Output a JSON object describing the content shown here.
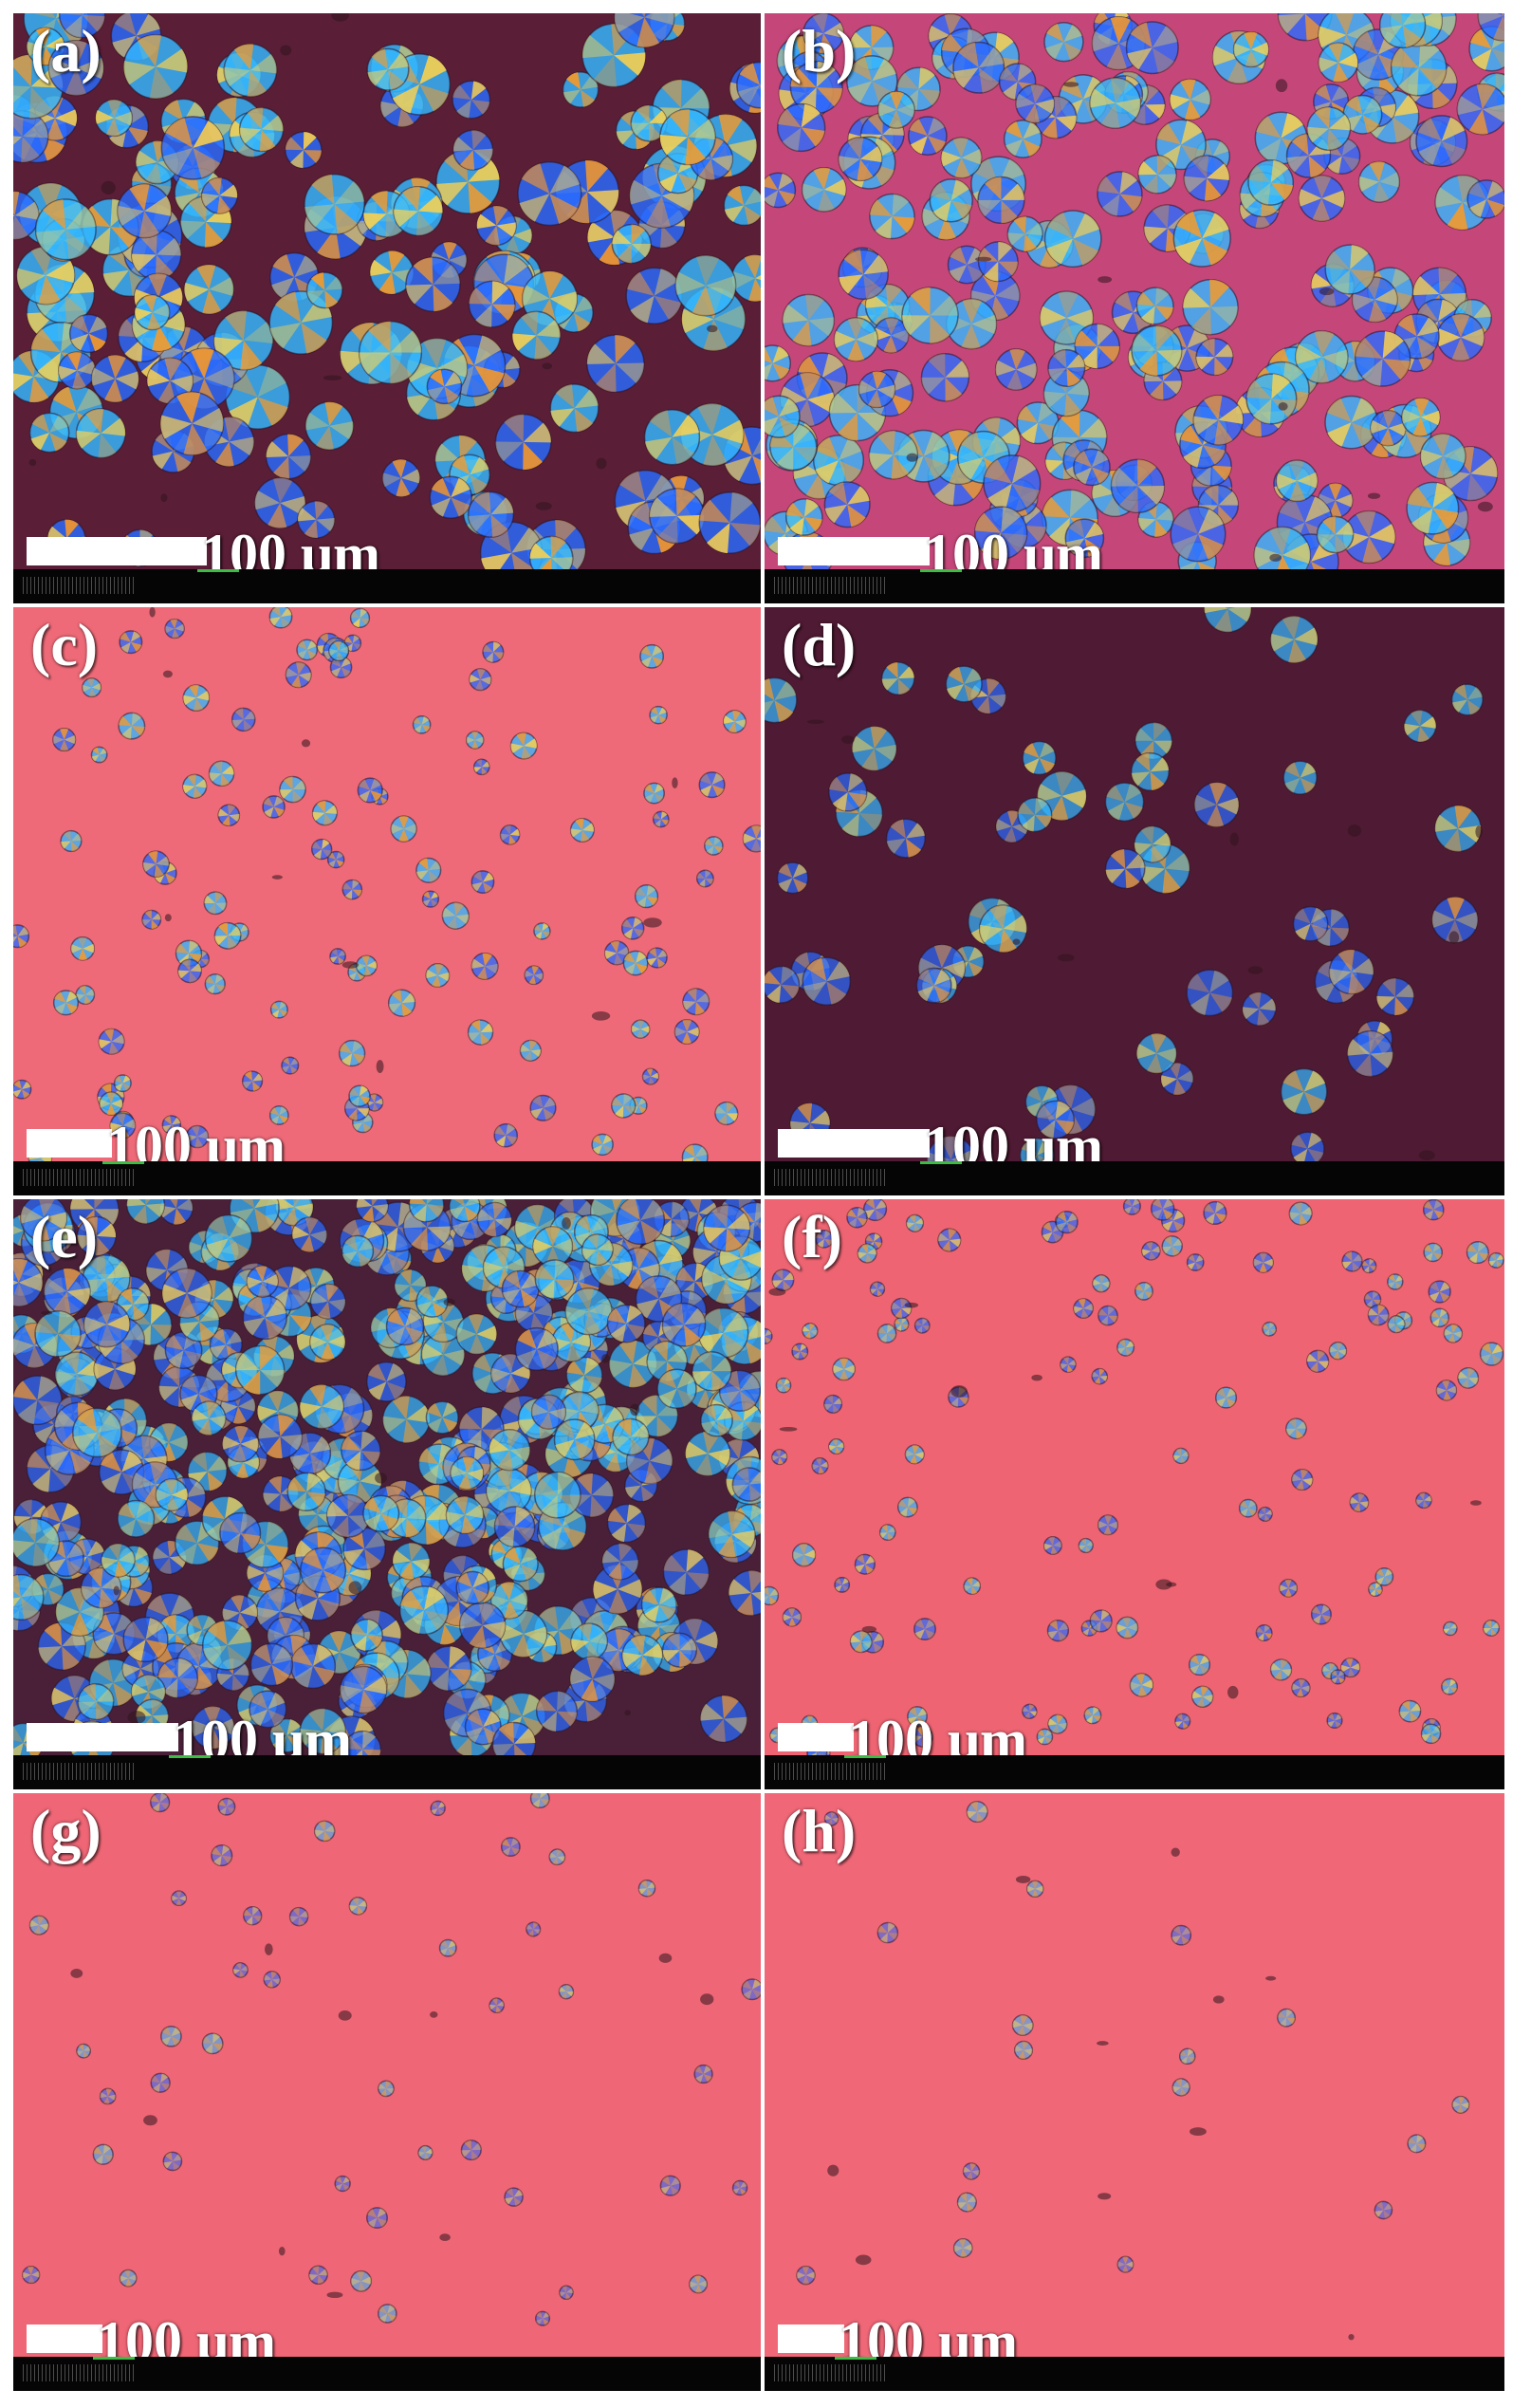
{
  "panels": [
    {
      "id": "a",
      "label": "(a)",
      "scale_text": "100 μm",
      "bg": "#5a1e36",
      "density": 150,
      "min_r": 18,
      "max_r": 34,
      "bright": 0.95,
      "seed": 11
    },
    {
      "id": "b",
      "label": "(b)",
      "scale_text": "100 μm",
      "bg": "#c5477a",
      "density": 200,
      "min_r": 18,
      "max_r": 30,
      "bright": 0.9,
      "seed": 23
    },
    {
      "id": "c",
      "label": "(c)",
      "scale_text": "100 μm",
      "bg": "#ef6a78",
      "density": 110,
      "min_r": 8,
      "max_r": 14,
      "bright": 0.85,
      "seed": 37
    },
    {
      "id": "d",
      "label": "(d)",
      "scale_text": "100 μm",
      "bg": "#4f1a33",
      "density": 55,
      "min_r": 16,
      "max_r": 26,
      "bright": 0.7,
      "seed": 41
    },
    {
      "id": "e",
      "label": "(e)",
      "scale_text": "100 μm",
      "bg": "#4a2038",
      "density": 420,
      "min_r": 16,
      "max_r": 26,
      "bright": 0.75,
      "seed": 53
    },
    {
      "id": "f",
      "label": "(f)",
      "scale_text": "100 μm",
      "bg": "#ee6472",
      "density": 120,
      "min_r": 7,
      "max_r": 12,
      "bright": 0.7,
      "seed": 67
    },
    {
      "id": "g",
      "label": "(g)",
      "scale_text": "100 μm",
      "bg": "#ef6676",
      "density": 45,
      "min_r": 7,
      "max_r": 11,
      "bright": 0.45,
      "seed": 79
    },
    {
      "id": "h",
      "label": "(h)",
      "scale_text": "100 μm",
      "bg": "#f06878",
      "density": 18,
      "min_r": 7,
      "max_r": 11,
      "bright": 0.4,
      "seed": 83
    }
  ],
  "colors": {
    "blue": "#2a6bff",
    "cyan": "#33b8ff",
    "orange": "#ff9a1f",
    "yellow": "#ffd24a",
    "scalebar": "#ffffff",
    "footer": "#050505"
  }
}
